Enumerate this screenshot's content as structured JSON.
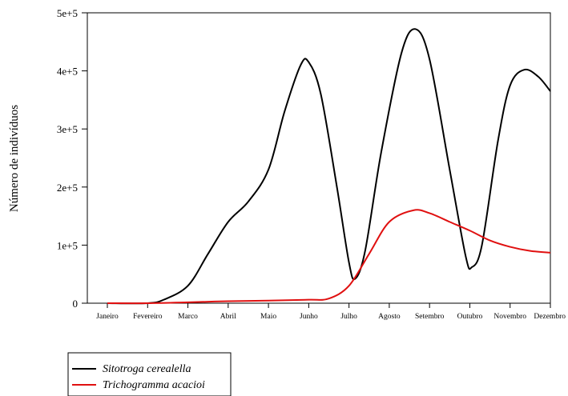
{
  "chart_data": {
    "type": "line",
    "title": "",
    "xlabel": "",
    "ylabel": "Número de indivíduos",
    "categories": [
      "Janeiro",
      "Fevereiro",
      "Marco",
      "Abril",
      "Maio",
      "Junho",
      "Julho",
      "Agosto",
      "Setembro",
      "Outubro",
      "Novembro",
      "Dezembro"
    ],
    "ylim": [
      0,
      500000
    ],
    "yticks": [
      {
        "value": 0,
        "label": "0"
      },
      {
        "value": 100000,
        "label": "1e+5"
      },
      {
        "value": 200000,
        "label": "2e+5"
      },
      {
        "value": 300000,
        "label": "3e+5"
      },
      {
        "value": 400000,
        "label": "4e+5"
      },
      {
        "value": 500000,
        "label": "5e+5"
      }
    ],
    "grid": false,
    "legend": "bottom-left",
    "series": [
      {
        "name": "Sitotroga cerealella",
        "color": "#000000",
        "points": [
          {
            "x": 0.0,
            "y": 0
          },
          {
            "x": 1.0,
            "y": 0
          },
          {
            "x": 1.4,
            "y": 6000
          },
          {
            "x": 2.0,
            "y": 30000
          },
          {
            "x": 2.5,
            "y": 85000
          },
          {
            "x": 3.0,
            "y": 140000
          },
          {
            "x": 3.5,
            "y": 175000
          },
          {
            "x": 4.0,
            "y": 230000
          },
          {
            "x": 4.4,
            "y": 330000
          },
          {
            "x": 4.8,
            "y": 410000
          },
          {
            "x": 5.0,
            "y": 415000
          },
          {
            "x": 5.3,
            "y": 360000
          },
          {
            "x": 5.7,
            "y": 200000
          },
          {
            "x": 6.0,
            "y": 70000
          },
          {
            "x": 6.15,
            "y": 42000
          },
          {
            "x": 6.4,
            "y": 90000
          },
          {
            "x": 6.8,
            "y": 260000
          },
          {
            "x": 7.3,
            "y": 430000
          },
          {
            "x": 7.65,
            "y": 472000
          },
          {
            "x": 8.0,
            "y": 420000
          },
          {
            "x": 8.5,
            "y": 230000
          },
          {
            "x": 8.9,
            "y": 80000
          },
          {
            "x": 9.05,
            "y": 62000
          },
          {
            "x": 9.3,
            "y": 100000
          },
          {
            "x": 9.7,
            "y": 280000
          },
          {
            "x": 10.0,
            "y": 375000
          },
          {
            "x": 10.35,
            "y": 402000
          },
          {
            "x": 10.7,
            "y": 390000
          },
          {
            "x": 11.0,
            "y": 365000
          }
        ]
      },
      {
        "name": "Trichogramma acacioi",
        "color": "#e01010",
        "points": [
          {
            "x": 0.0,
            "y": 0
          },
          {
            "x": 1.0,
            "y": 0
          },
          {
            "x": 2.0,
            "y": 1500
          },
          {
            "x": 3.0,
            "y": 3500
          },
          {
            "x": 4.0,
            "y": 4500
          },
          {
            "x": 5.0,
            "y": 6000
          },
          {
            "x": 5.5,
            "y": 8000
          },
          {
            "x": 6.0,
            "y": 30000
          },
          {
            "x": 6.5,
            "y": 85000
          },
          {
            "x": 7.0,
            "y": 140000
          },
          {
            "x": 7.6,
            "y": 160000
          },
          {
            "x": 8.0,
            "y": 155000
          },
          {
            "x": 8.5,
            "y": 140000
          },
          {
            "x": 9.0,
            "y": 125000
          },
          {
            "x": 9.5,
            "y": 108000
          },
          {
            "x": 10.0,
            "y": 97000
          },
          {
            "x": 10.5,
            "y": 90000
          },
          {
            "x": 11.0,
            "y": 87000
          }
        ]
      }
    ]
  }
}
